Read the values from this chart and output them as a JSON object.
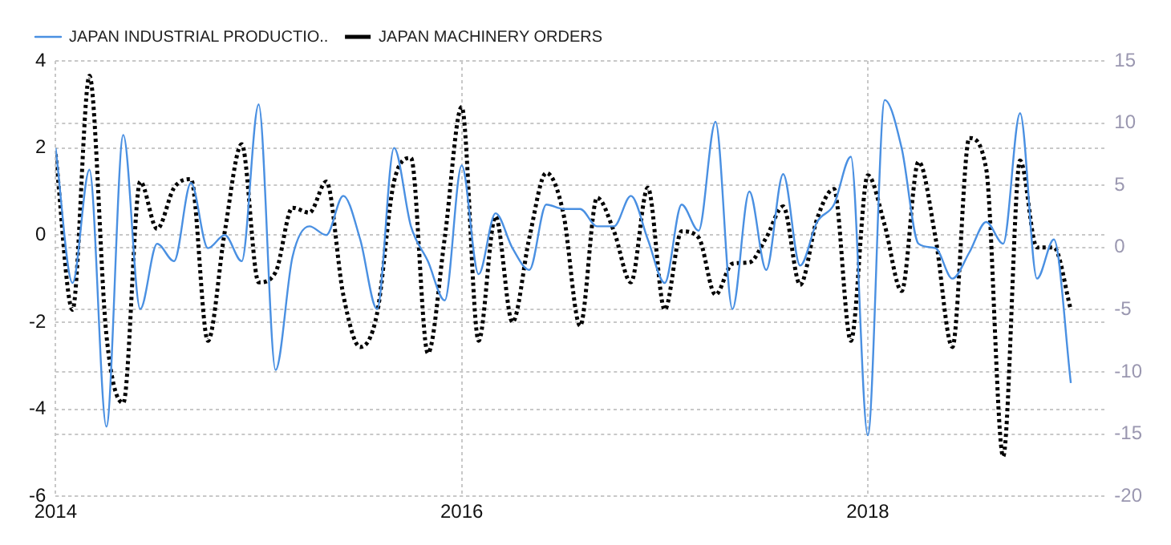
{
  "chart_data": {
    "type": "line",
    "x": [
      "2014-01",
      "2014-02",
      "2014-03",
      "2014-04",
      "2014-05",
      "2014-06",
      "2014-07",
      "2014-08",
      "2014-09",
      "2014-10",
      "2014-11",
      "2014-12",
      "2015-01",
      "2015-02",
      "2015-03",
      "2015-04",
      "2015-05",
      "2015-06",
      "2015-07",
      "2015-08",
      "2015-09",
      "2015-10",
      "2015-11",
      "2015-12",
      "2016-01",
      "2016-02",
      "2016-03",
      "2016-04",
      "2016-05",
      "2016-06",
      "2016-07",
      "2016-08",
      "2016-09",
      "2016-10",
      "2016-11",
      "2016-12",
      "2017-01",
      "2017-02",
      "2017-03",
      "2017-04",
      "2017-05",
      "2017-06",
      "2017-07",
      "2017-08",
      "2017-09",
      "2017-10",
      "2017-11",
      "2017-12",
      "2018-01",
      "2018-02",
      "2018-03",
      "2018-04",
      "2018-05",
      "2018-06",
      "2018-07",
      "2018-08",
      "2018-09",
      "2018-10",
      "2018-11",
      "2018-12",
      "2019-01"
    ],
    "series": [
      {
        "name": "JAPAN INDUSTRIAL PRODUCTIO..",
        "color": "#4a90e2",
        "line_style": "solid",
        "values": [
          2.0,
          -1.1,
          1.5,
          -4.4,
          2.3,
          -1.7,
          -0.2,
          -0.6,
          1.2,
          -0.3,
          0.0,
          -0.6,
          3.0,
          -3.1,
          -0.5,
          0.2,
          0.0,
          0.9,
          -0.1,
          -1.7,
          2.0,
          0.2,
          -0.6,
          -1.5,
          1.6,
          -0.9,
          0.5,
          -0.3,
          -0.8,
          0.7,
          0.6,
          0.6,
          0.2,
          0.2,
          0.9,
          -0.1,
          -1.1,
          0.7,
          0.1,
          2.6,
          -1.7,
          1.0,
          -0.8,
          1.4,
          -0.7,
          0.3,
          0.7,
          1.8,
          -4.6,
          3.1,
          2.0,
          -0.2,
          -0.3,
          -1.0,
          -0.4,
          0.3,
          -0.2,
          2.8,
          -1.0,
          -0.1,
          -3.4
        ]
      },
      {
        "name": "JAPAN MACHINERY ORDERS",
        "color": "#000000",
        "line_style": "dotted",
        "axis": "y2",
        "values": [
          7.5,
          -5.0,
          13.8,
          -7.0,
          -12.5,
          5.3,
          1.5,
          4.8,
          5.5,
          -7.5,
          1.3,
          8.3,
          -2.8,
          -2.0,
          3.2,
          2.8,
          5.3,
          -3.8,
          -8.0,
          -5.3,
          5.3,
          7.2,
          -8.5,
          0.8,
          11.3,
          -7.5,
          2.5,
          -6.0,
          0.8,
          6.0,
          2.8,
          -6.3,
          4.0,
          1.3,
          -2.8,
          4.8,
          -5.0,
          1.3,
          0.8,
          -3.8,
          -1.3,
          -1.2,
          0.8,
          3.3,
          -3.0,
          2.3,
          4.7,
          -7.5,
          5.8,
          1.8,
          -3.5,
          6.9,
          0.8,
          -8.0,
          8.8,
          6.3,
          -16.8,
          7.0,
          0.0,
          0.0,
          -5.0
        ]
      }
    ],
    "xlim": [
      "2014-01",
      "2019-03"
    ],
    "xticks": [
      "2014",
      "2016",
      "2018"
    ],
    "ylim": [
      -6,
      4
    ],
    "yticks": [
      -6,
      -4,
      -2,
      0,
      2,
      4
    ],
    "y2lim": [
      -20,
      15
    ],
    "y2ticks": [
      -20,
      -15,
      -10,
      -5,
      0,
      5,
      10,
      15
    ],
    "grid": true,
    "legend": "top left",
    "marker": "none"
  }
}
